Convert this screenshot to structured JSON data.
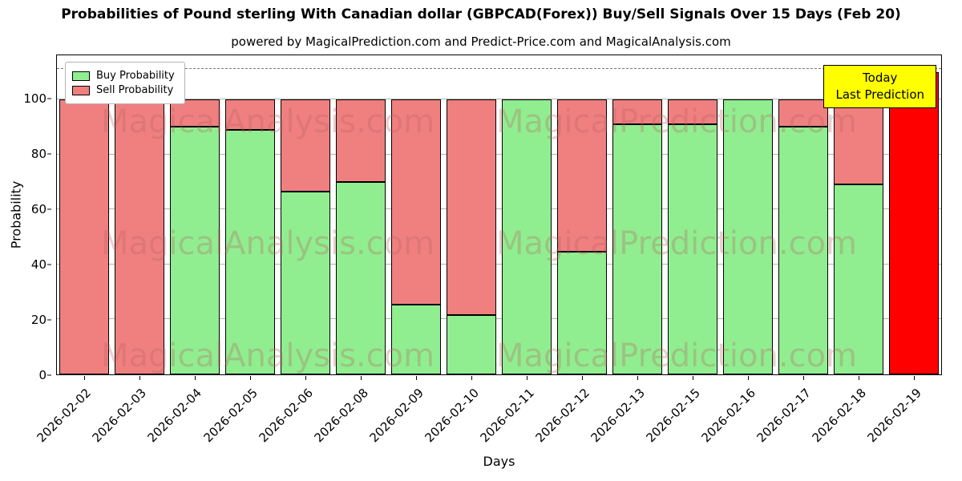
{
  "title": "Probabilities of Pound sterling With Canadian dollar (GBPCAD(Forex)) Buy/Sell Signals Over 15 Days (Feb 20)",
  "subtitle": "powered by MagicalPrediction.com and Predict-Price.com and MagicalAnalysis.com",
  "legend": {
    "buy": "Buy Probability",
    "sell": "Sell Probability"
  },
  "annotation": {
    "line1": "Today",
    "line2": "Last Prediction"
  },
  "watermarks": [
    "MagicalAnalysis.com",
    "MagicalPrediction.com"
  ],
  "colors": {
    "buy": "#90EE90",
    "sell": "#F08080",
    "today": "#FF0000",
    "annotation_bg": "#FFFF00",
    "grid": "#b3b3b3"
  },
  "chart_data": {
    "type": "bar",
    "stacked": true,
    "title": "Probabilities of Pound sterling With Canadian dollar (GBPCAD(Forex)) Buy/Sell Signals Over 15 Days (Feb 20)",
    "xlabel": "Days",
    "ylabel": "Probability",
    "yticks": [
      0,
      20,
      40,
      60,
      80,
      100
    ],
    "ylim": [
      0,
      116
    ],
    "dashed_line_y": 111,
    "grid": true,
    "legend_position": "upper-left",
    "categories": [
      "2026-02-02",
      "2026-02-03",
      "2026-02-04",
      "2026-02-05",
      "2026-02-06",
      "2026-02-08",
      "2026-02-09",
      "2026-02-10",
      "2026-02-11",
      "2026-02-12",
      "2026-02-13",
      "2026-02-15",
      "2026-02-16",
      "2026-02-17",
      "2026-02-18",
      "2026-02-19"
    ],
    "series": [
      {
        "name": "Buy Probability",
        "color": "#90EE90",
        "values": [
          0,
          0,
          90,
          89,
          66.5,
          70,
          25.5,
          21.5,
          100,
          44.5,
          91,
          91,
          100,
          90,
          69,
          0
        ]
      },
      {
        "name": "Sell Probability",
        "color": "#F08080",
        "values": [
          100,
          100,
          10,
          11,
          33.5,
          30,
          74.5,
          78.5,
          0,
          55.5,
          9,
          9,
          0,
          10,
          31,
          0
        ]
      }
    ],
    "today_bar": {
      "category": "2026-02-19",
      "value": 110,
      "color": "#FF0000",
      "label": "Today Last Prediction"
    }
  }
}
